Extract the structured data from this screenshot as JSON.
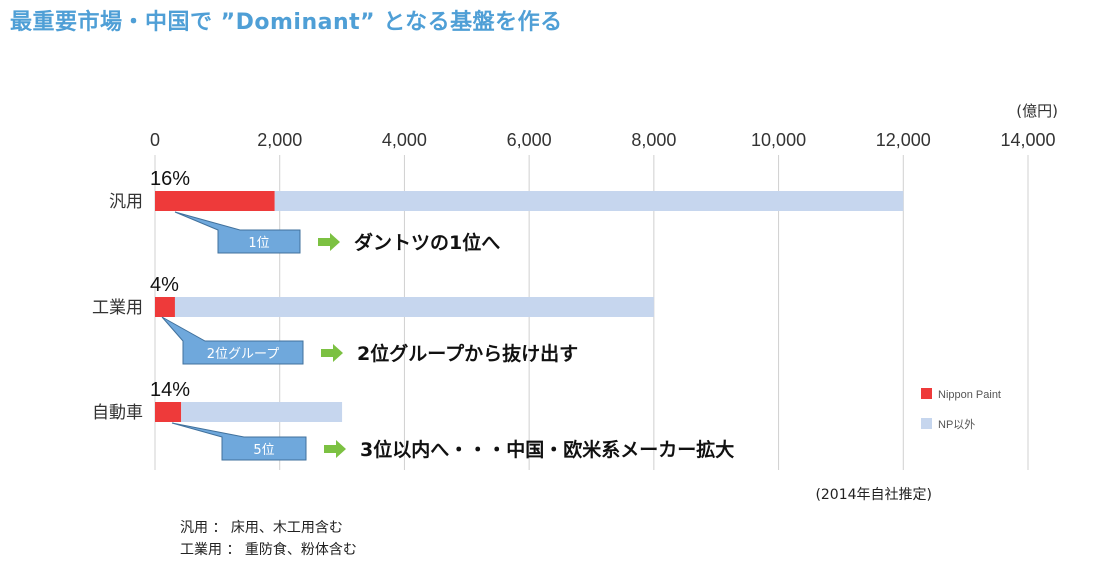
{
  "title": "最重要市場・中国で ”Dominant” となる基盤を作る",
  "chart_data": {
    "type": "bar",
    "orientation": "horizontal",
    "stacked": true,
    "unit_label": "(億円)",
    "xlim": [
      0,
      14000
    ],
    "x_ticks": [
      0,
      2000,
      4000,
      6000,
      8000,
      10000,
      12000,
      14000
    ],
    "x_tick_labels": [
      "0",
      "2,000",
      "4,000",
      "6,000",
      "8,000",
      "10,000",
      "12,000",
      "14,000"
    ],
    "categories": [
      "汎用",
      "工業用",
      "自動車"
    ],
    "series": [
      {
        "name": "Nippon Paint",
        "color": "#ee3a3a",
        "values": [
          1920,
          320,
          420
        ]
      },
      {
        "name": "NP以外",
        "color": "#c6d6ee",
        "values": [
          10080,
          7680,
          2580
        ]
      }
    ],
    "share_labels": [
      "16%",
      "4%",
      "14%"
    ],
    "callouts": [
      "1位",
      "2位グループ",
      "5位"
    ],
    "messages": [
      "ダントツの1位へ",
      "2位グループから抜け出す",
      "3位以内へ・・・中国・欧米系メーカー拡大"
    ],
    "legend_position": "right",
    "grid": true,
    "source": "(2014年自社推定)"
  },
  "notes": [
    "汎用 ： 床用、木工用含む",
    "工業用 ： 重防食、粉体含む"
  ]
}
